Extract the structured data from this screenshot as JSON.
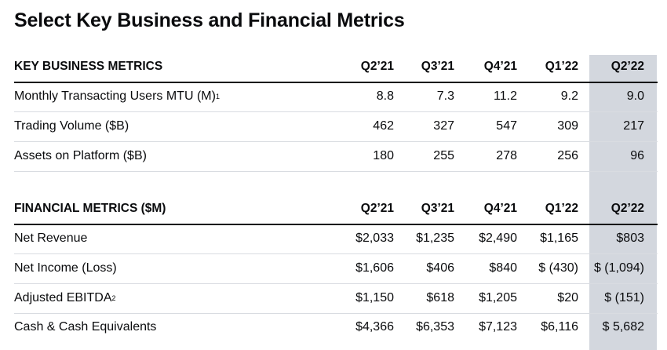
{
  "title": "Select Key Business and Financial Metrics",
  "business": {
    "header": [
      "KEY BUSINESS METRICS",
      "Q2’21",
      "Q3’21",
      "Q4’21",
      "Q1’22",
      "Q2’22"
    ],
    "rows": [
      {
        "label": "Monthly Transacting Users MTU (M)",
        "note": "1",
        "values": [
          "8.8",
          "7.3",
          "11.2",
          "9.2",
          "9.0"
        ]
      },
      {
        "label": "Trading Volume ($B)",
        "note": "",
        "values": [
          "462",
          "327",
          "547",
          "309",
          "217"
        ]
      },
      {
        "label": "Assets on Platform ($B)",
        "note": "",
        "values": [
          "180",
          "255",
          "278",
          "256",
          "96"
        ]
      }
    ]
  },
  "financial": {
    "header": [
      "FINANCIAL METRICS ($M)",
      "Q2’21",
      "Q3’21",
      "Q4’21",
      "Q1’22",
      "Q2’22"
    ],
    "rows": [
      {
        "label": "Net Revenue",
        "note": "",
        "values": [
          "$2,033",
          "$1,235",
          "$2,490",
          "$1,165",
          "$803"
        ]
      },
      {
        "label": "Net Income (Loss)",
        "note": "",
        "values": [
          "$1,606",
          "$406",
          "$840",
          "$ (430)",
          "$ (1,094)"
        ]
      },
      {
        "label": "Adjusted EBITDA",
        "note": "2",
        "values": [
          "$1,150",
          "$618",
          "$1,205",
          "$20",
          "$ (151)"
        ]
      },
      {
        "label": "Cash & Cash Equivalents",
        "note": "",
        "values": [
          "$4,366",
          "$6,353",
          "$7,123",
          "$6,116",
          "$ 5,682"
        ]
      }
    ]
  },
  "colors": {
    "highlight": "#d3d7de",
    "text": "#0a0b0d",
    "rule": "#d9dce1"
  }
}
